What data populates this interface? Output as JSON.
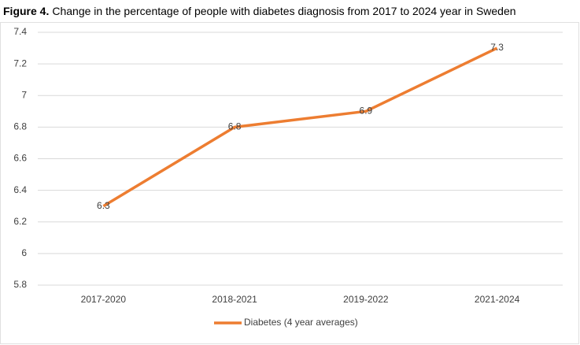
{
  "chart_data": {
    "type": "line",
    "title_label": "Figure 4.",
    "title": "Change in the percentage of people with diabetes diagnosis from 2017 to 2024 year in Sweden",
    "categories": [
      "2017-2020",
      "2018-2021",
      "2019-2022",
      "2021-2024"
    ],
    "series": [
      {
        "name": "Diabetes (4 year averages)",
        "color": "#ed7d31",
        "values": [
          6.3,
          6.8,
          6.9,
          7.3
        ]
      }
    ],
    "ylim": [
      5.8,
      7.4
    ],
    "yticks": [
      5.8,
      6,
      6.2,
      6.4,
      6.6,
      6.8,
      7,
      7.2,
      7.4
    ],
    "grid": true,
    "legend": "bottom",
    "data_labels": true
  }
}
